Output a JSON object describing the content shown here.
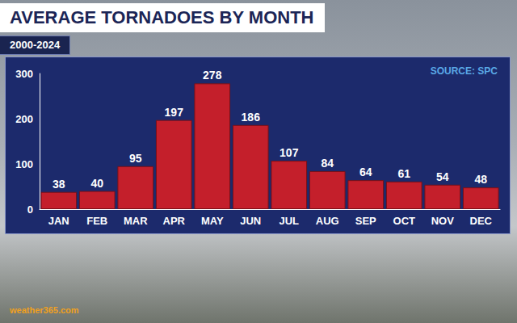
{
  "chart_data": {
    "type": "bar",
    "title": "AVERAGE TORNADOES BY MONTH",
    "subtitle": "2000-2024",
    "source": "SOURCE: SPC",
    "credit": "weather365.com",
    "categories": [
      "JAN",
      "FEB",
      "MAR",
      "APR",
      "MAY",
      "JUN",
      "JUL",
      "AUG",
      "SEP",
      "OCT",
      "NOV",
      "DEC"
    ],
    "values": [
      38,
      40,
      95,
      197,
      278,
      186,
      107,
      84,
      64,
      61,
      54,
      48
    ],
    "color": "#c41f2b",
    "ylim": [
      0,
      300
    ],
    "yticks": [
      0,
      100,
      200,
      300
    ],
    "grid": false,
    "data_labels": true
  }
}
